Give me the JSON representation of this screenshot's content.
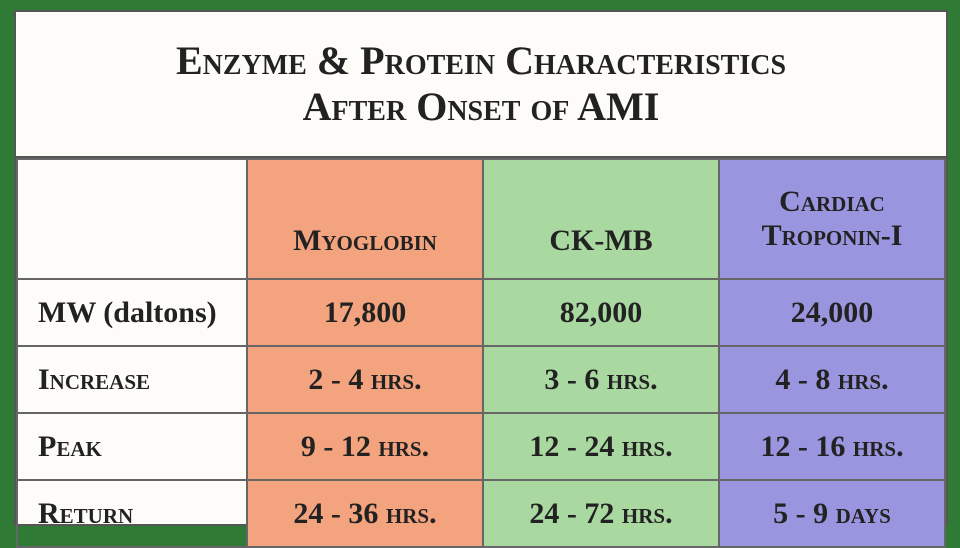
{
  "title": [
    "Enzyme & Protein Characteristics",
    "After Onset of AMI"
  ],
  "table": {
    "header": [
      "Myoglobin",
      "CK-MB",
      "Cardiac Troponin-I"
    ],
    "rows": [
      {
        "label": "MW (daltons)",
        "cells": [
          "17,800",
          "82,000",
          "24,000"
        ]
      },
      {
        "label": "Increase",
        "cells": [
          "2 - 4 hrs.",
          "3 - 6 hrs.",
          "4 - 8 hrs."
        ]
      },
      {
        "label": "Peak",
        "cells": [
          "9 - 12 hrs.",
          "12 - 24 hrs.",
          "12 - 16 hrs."
        ]
      },
      {
        "label": "Return",
        "cells": [
          "24 - 36 hrs.",
          "24 - 72 hrs.",
          "5 - 9 days"
        ]
      }
    ]
  }
}
